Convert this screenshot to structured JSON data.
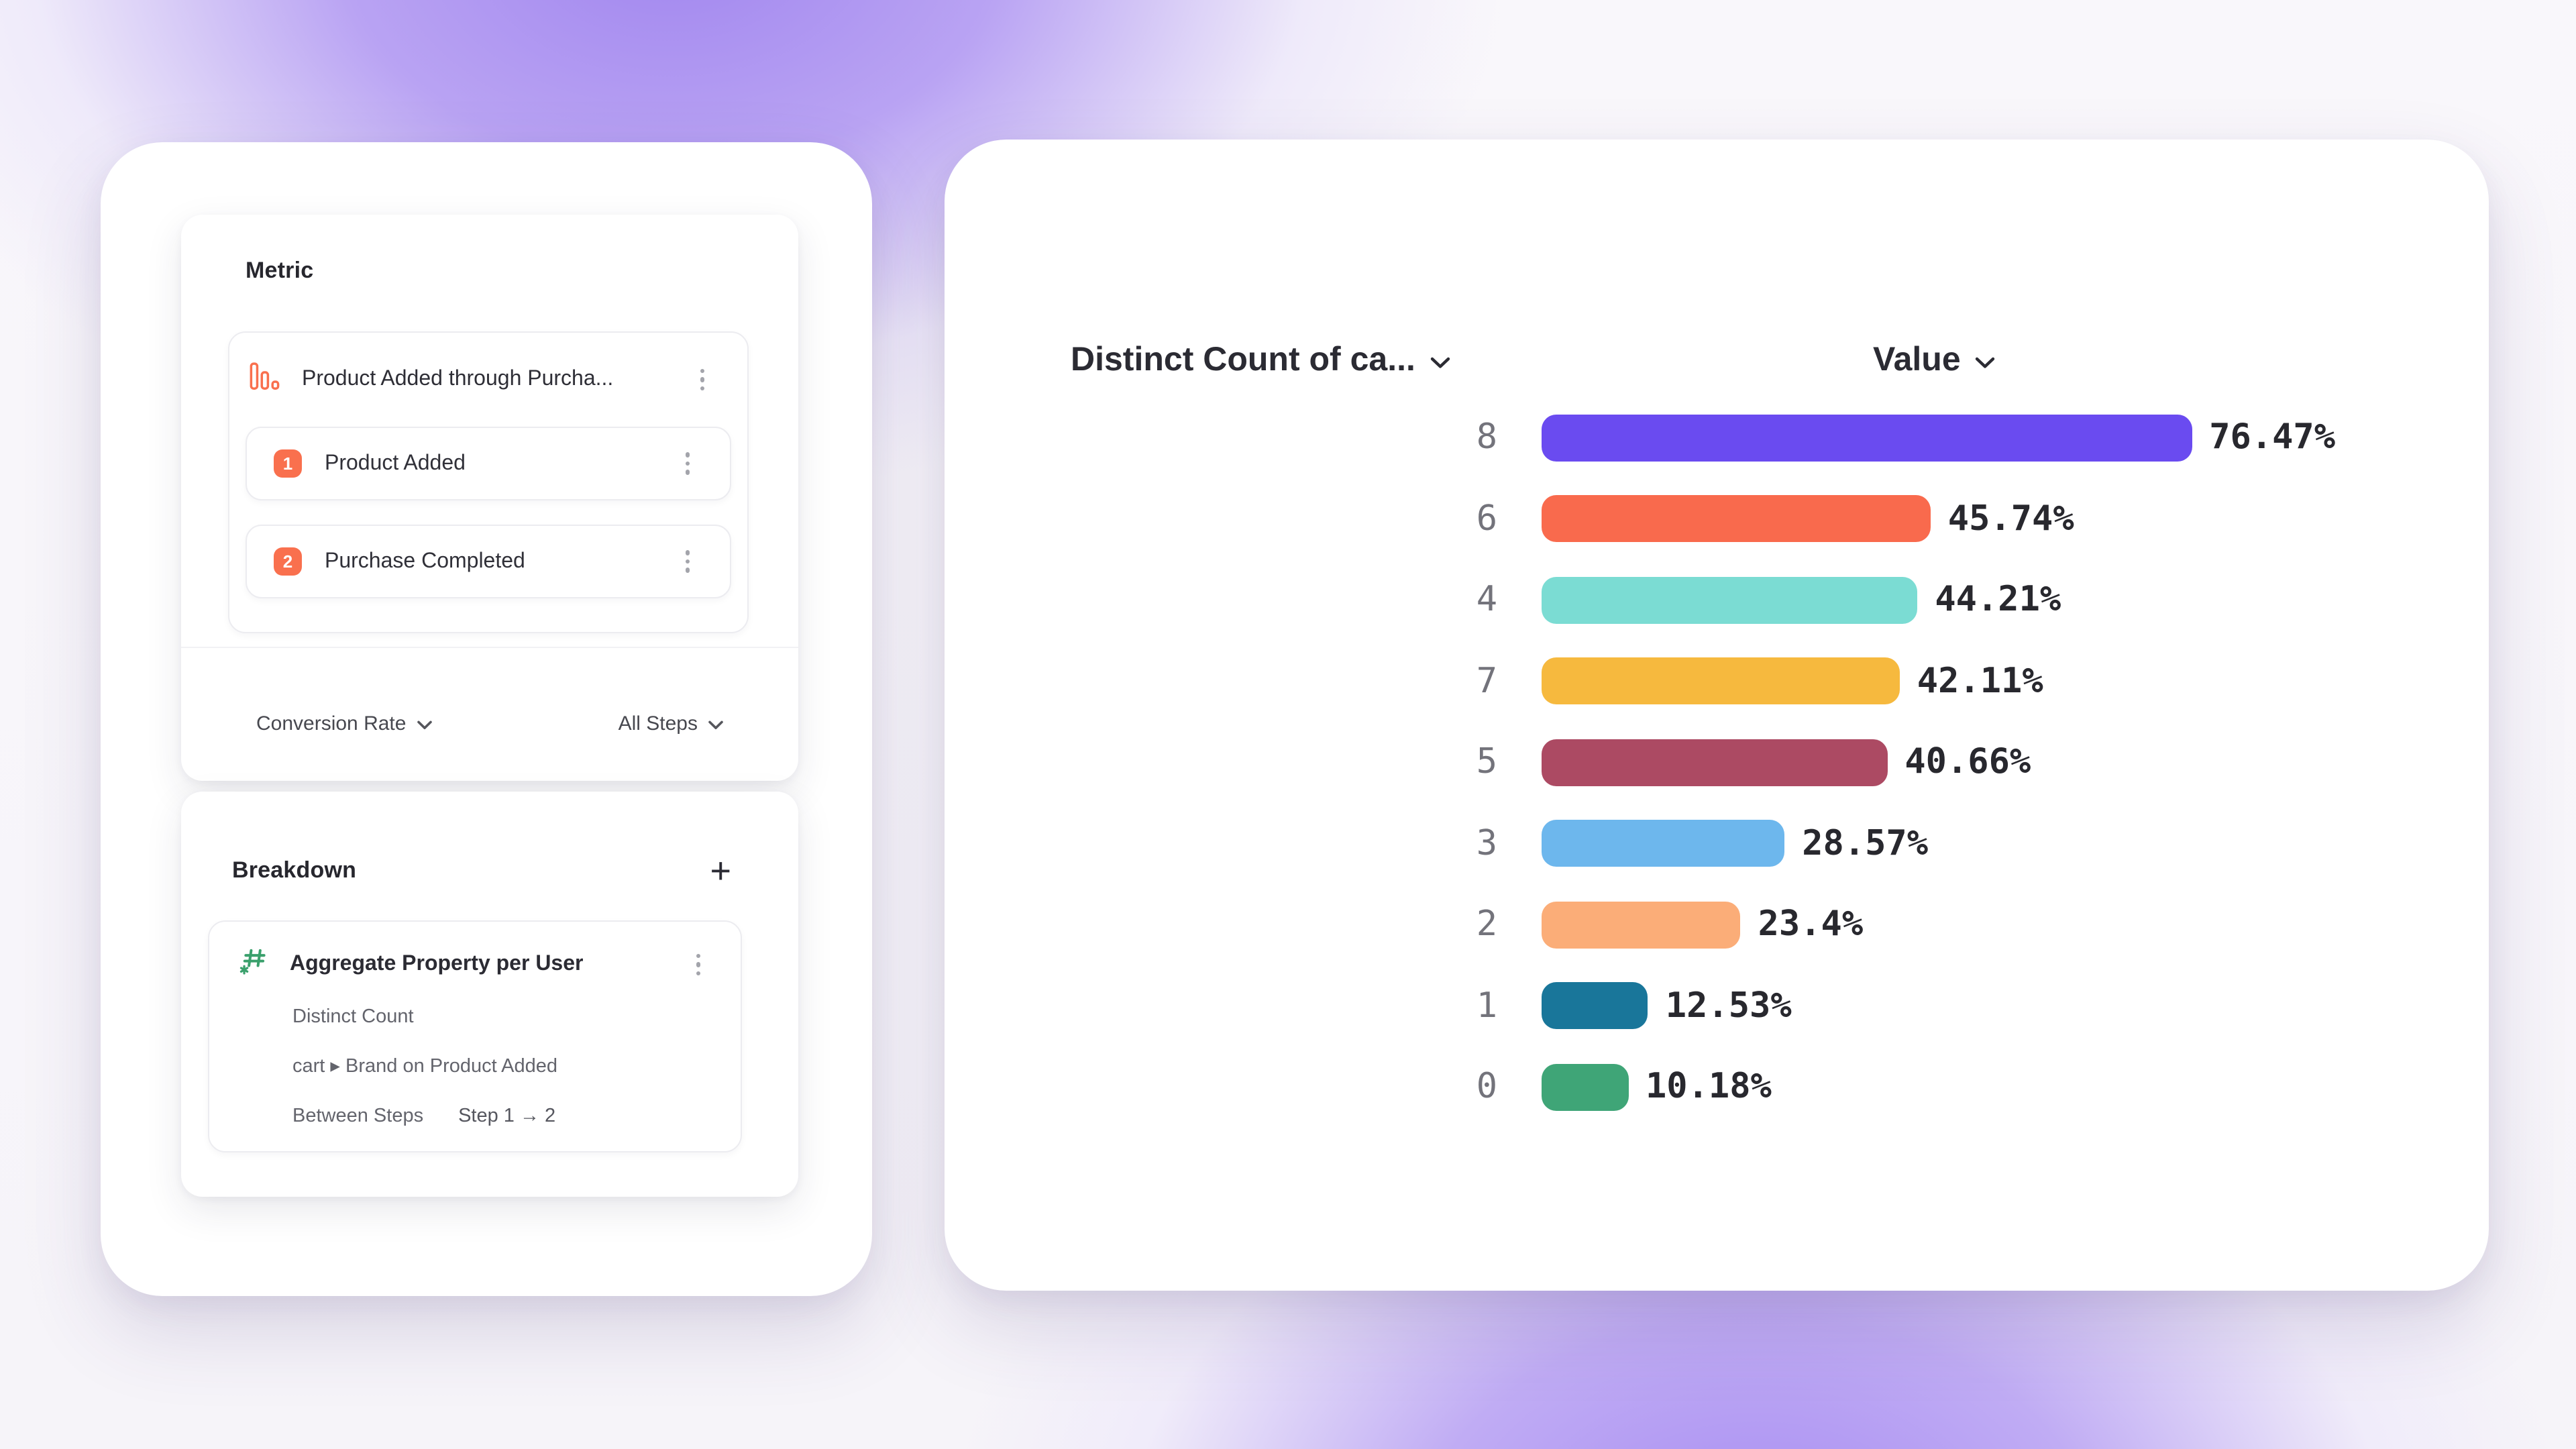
{
  "left": {
    "metric": {
      "title": "Metric",
      "funnel": {
        "label": "Product Added through Purcha...",
        "steps": [
          {
            "num": "1",
            "label": "Product Added"
          },
          {
            "num": "2",
            "label": "Purchase Completed"
          }
        ]
      },
      "footer": {
        "measure": "Conversion Rate",
        "scope": "All Steps"
      }
    },
    "breakdown": {
      "title": "Breakdown",
      "add_label": "+",
      "item": {
        "title": "Aggregate Property per User",
        "aggregation": "Distinct Count",
        "property": "cart ▸ Brand on Product Added",
        "between_label": "Between Steps",
        "between_value": "Step 1 → 2"
      }
    }
  },
  "chart": {
    "col1_header": "Distinct Count of ca...",
    "col2_header": "Value"
  },
  "chart_data": {
    "type": "bar",
    "orientation": "horizontal",
    "title": "",
    "xlabel": "Value",
    "ylabel": "Distinct Count of ca...",
    "categories": [
      "8",
      "6",
      "4",
      "7",
      "5",
      "3",
      "2",
      "1",
      "0"
    ],
    "values": [
      76.47,
      45.74,
      44.21,
      42.11,
      40.66,
      28.57,
      23.4,
      12.53,
      10.18
    ],
    "value_labels": [
      "76.47%",
      "45.74%",
      "44.21%",
      "42.11%",
      "40.66%",
      "28.57%",
      "23.4%",
      "12.53%",
      "10.18%"
    ],
    "colors": [
      "#6A4BF0",
      "#F96A4D",
      "#7BDCD3",
      "#F6B93E",
      "#AC4A63",
      "#6DB7ED",
      "#FBAD78",
      "#19769A",
      "#3FA577"
    ],
    "xlim": [
      0,
      80
    ],
    "grid": false,
    "legend": false
  },
  "accents": {
    "orange": "#F9704E",
    "green": "#3AA06C",
    "background_purple": "#A78CF2"
  }
}
